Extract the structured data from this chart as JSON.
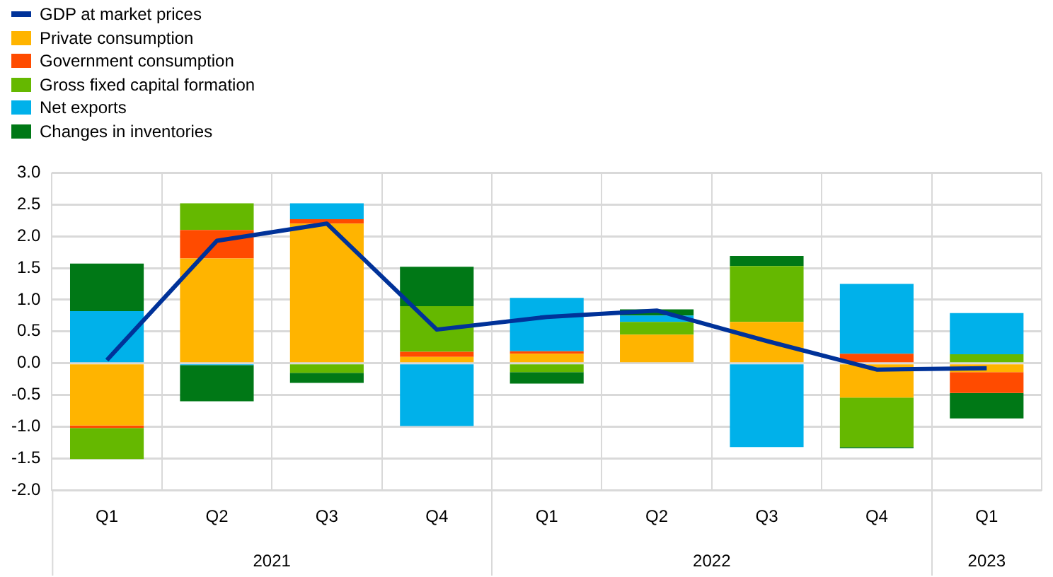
{
  "chart_data": {
    "type": "bar",
    "stacked": true,
    "categories": [
      "Q1",
      "Q2",
      "Q3",
      "Q4",
      "Q1",
      "Q2",
      "Q3",
      "Q4",
      "Q1"
    ],
    "annotations": [
      "2021",
      "2022",
      "2023"
    ],
    "series": [
      {
        "name": "GDP at market prices",
        "type": "line",
        "color": "#003299",
        "marker": "none",
        "values": [
          0.05,
          1.93,
          2.2,
          0.53,
          0.73,
          0.83,
          0.35,
          -0.1,
          -0.08
        ]
      },
      {
        "name": "Private consumption",
        "color": "#ffb400",
        "values": [
          -0.98,
          1.65,
          2.2,
          0.1,
          0.15,
          0.45,
          0.65,
          -0.54,
          -0.14
        ]
      },
      {
        "name": "Government consumption",
        "color": "#ff4b00",
        "values": [
          -0.04,
          0.45,
          0.07,
          0.08,
          0.04,
          null,
          0.0,
          0.15,
          -0.33
        ]
      },
      {
        "name": "Gross fixed capital formation",
        "color": "#65b800",
        "values": [
          -0.49,
          0.42,
          -0.15,
          0.72,
          -0.14,
          0.2,
          0.88,
          -0.78,
          0.14
        ]
      },
      {
        "name": "Net exports",
        "color": "#00b1ea",
        "values": [
          0.82,
          -0.03,
          0.25,
          -0.99,
          0.84,
          0.1,
          -1.32,
          1.1,
          0.65
        ]
      },
      {
        "name": "Changes in inventories",
        "color": "#007816",
        "values": [
          0.75,
          -0.57,
          -0.16,
          0.62,
          -0.18,
          0.1,
          0.16,
          -0.02,
          -0.4
        ]
      }
    ],
    "ylim": [
      -2.0,
      3.0
    ],
    "yticks": [
      {
        "value": -2,
        "label": "-2.0"
      },
      {
        "value": -1.5,
        "label": "-1.5"
      },
      {
        "value": -1,
        "label": "-1.0"
      },
      {
        "value": -0.5,
        "label": "-0.5"
      },
      {
        "value": 0,
        "label": "0.0"
      },
      {
        "value": 0.5,
        "label": "0.5"
      },
      {
        "value": 1,
        "label": "1.0"
      },
      {
        "value": 1.5,
        "label": "1.5"
      },
      {
        "value": 2,
        "label": "2.0"
      },
      {
        "value": 2.5,
        "label": "2.5"
      },
      {
        "value": 3,
        "label": "3.0"
      }
    ],
    "grid": true,
    "legend": "top left"
  }
}
